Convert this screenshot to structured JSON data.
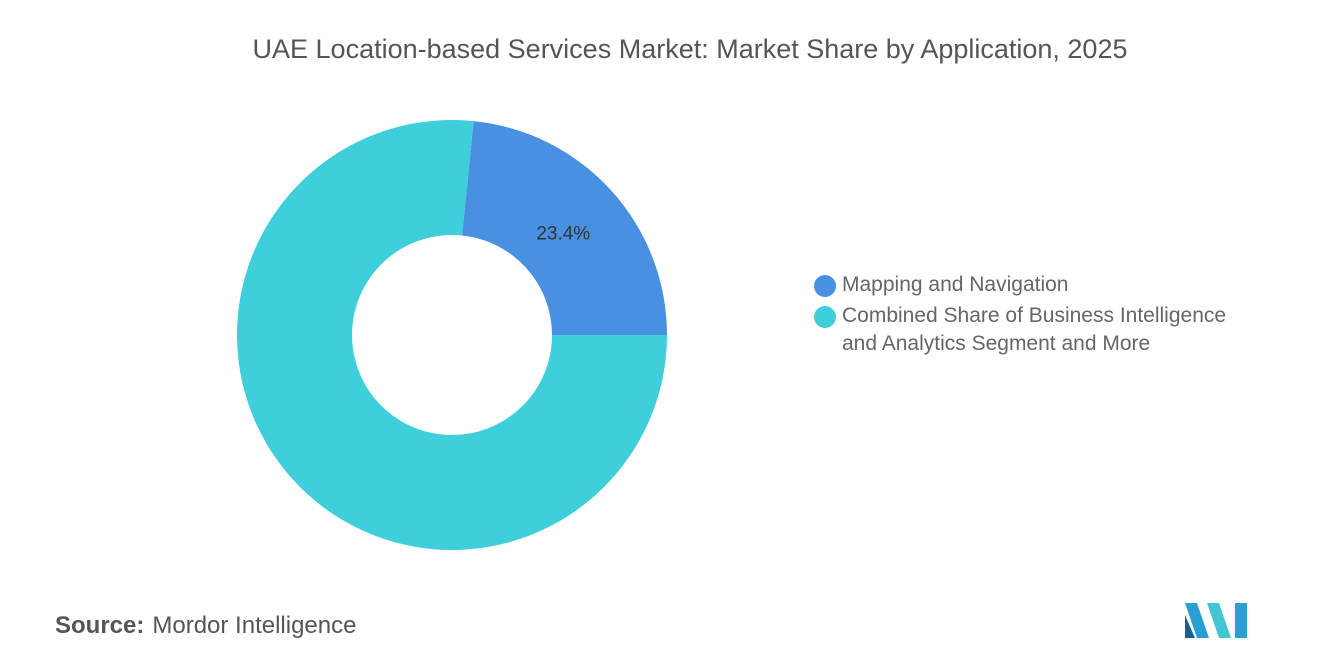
{
  "chart_data": {
    "type": "donut",
    "title": "UAE Location-based Services Market: Market Share by Application, 2025",
    "categories": [
      "Mapping and Navigation",
      "Combined Share of Business Intelligence and Analytics Segment and More"
    ],
    "values": [
      23.4,
      76.6
    ],
    "value_labels": [
      "23.4%",
      null
    ],
    "colors": [
      "#4a90e2",
      "#3ecfdb"
    ],
    "source_label": "Source:",
    "source": "Mordor Intelligence"
  }
}
